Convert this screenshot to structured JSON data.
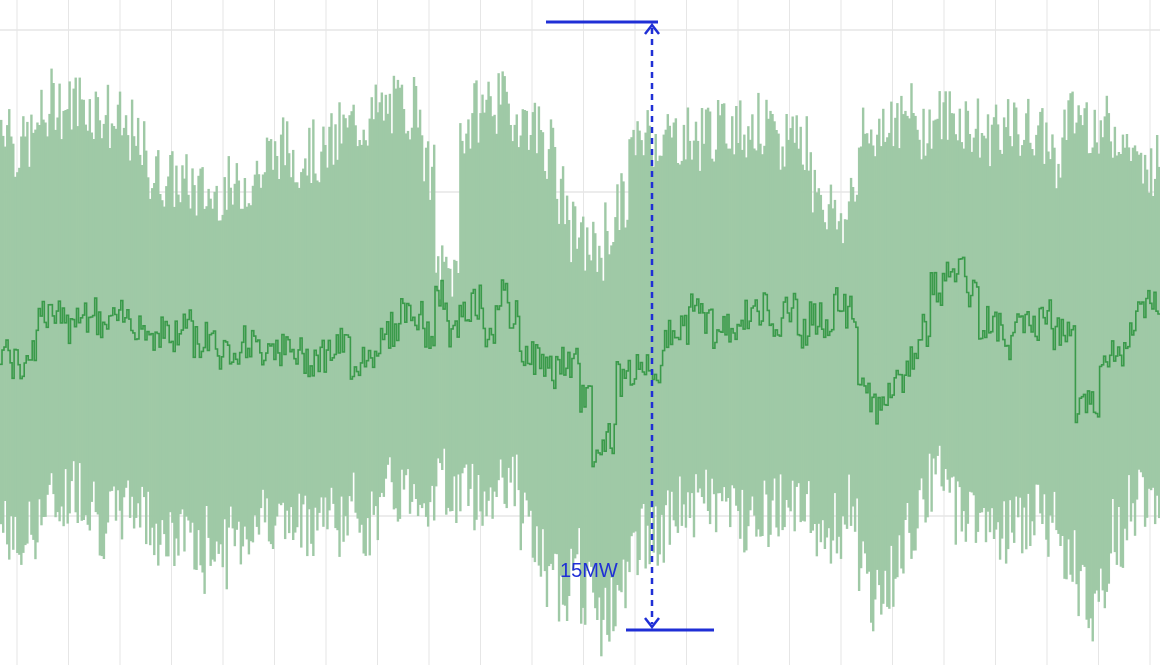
{
  "chart_data": {
    "type": "area",
    "title": "",
    "xlabel": "",
    "ylabel": "",
    "grid": true,
    "legend": "none",
    "colors": {
      "band_fill": "#9fc9a6",
      "line": "#3a9a4a",
      "grid": "#d8d8d8",
      "annotation": "#1f2fd6"
    },
    "series": [
      {
        "role": "mean",
        "values": [
          7.6,
          7.2,
          7.6,
          8.5,
          8.4,
          8.2,
          8.6,
          8.5,
          8.2,
          8.3,
          8.4,
          8.3,
          8.0,
          8.1,
          7.9,
          8.3,
          7.8,
          8.0,
          7.5,
          7.7,
          7.8,
          7.6,
          7.8,
          7.6,
          7.5,
          7.4,
          7.5,
          7.6,
          7.7,
          7.3,
          7.5,
          7.8,
          8.1,
          8.6,
          8.4,
          8.0,
          8.9,
          8.0,
          8.4,
          8.8,
          8.1,
          8.9,
          8.4,
          7.6,
          7.4,
          7.1,
          7.3,
          7.2,
          6.5,
          5.1,
          5.5,
          6.9,
          7.1,
          7.3,
          7.2,
          7.9,
          8.2,
          8.6,
          8.4,
          8.0,
          8.2,
          8.4,
          8.5,
          8.6,
          8.4,
          8.7,
          8.1,
          8.4,
          8.2,
          8.7,
          8.5,
          6.9,
          6.1,
          6.4,
          6.9,
          7.4,
          8.1,
          9.1,
          9.4,
          9.6,
          8.9,
          8.3,
          8.2,
          7.8,
          8.1,
          8.3,
          8.4,
          8.0,
          8.0,
          6.1,
          6.3,
          7.3,
          7.5,
          8.0,
          8.5,
          8.8
        ],
        "upper": [
          13.3,
          12.6,
          12.8,
          13.3,
          13.8,
          13.6,
          13.8,
          13.6,
          13.5,
          13.2,
          13.0,
          12.6,
          12.0,
          11.9,
          11.8,
          11.7,
          11.5,
          11.4,
          11.6,
          11.5,
          11.8,
          12.0,
          12.4,
          12.6,
          12.4,
          12.5,
          12.4,
          12.7,
          13.0,
          13.2,
          13.3,
          13.5,
          13.6,
          13.6,
          13.7,
          12.0,
          9.5,
          9.5,
          13.1,
          13.5,
          13.8,
          13.7,
          13.4,
          13.3,
          13.1,
          12.6,
          11.4,
          10.5,
          10.2,
          10.1,
          10.6,
          11.2,
          12.6,
          13.0,
          12.9,
          12.9,
          12.9,
          12.8,
          13.1,
          13.0,
          13.2,
          13.1,
          13.2,
          13.0,
          12.5,
          13.1,
          12.8,
          11.8,
          11.2,
          10.8,
          11.4,
          12.8,
          13.0,
          13.4,
          13.2,
          13.4,
          13.1,
          13.3,
          13.4,
          13.3,
          13.1,
          12.9,
          13.2,
          13.0,
          13.0,
          13.1,
          12.8,
          12.4,
          13.3,
          13.4,
          13.2,
          13.1,
          13.0,
          12.6,
          12.0,
          12.2
        ],
        "lower": [
          3.2,
          2.7,
          3.1,
          3.6,
          3.8,
          4.0,
          4.2,
          3.9,
          3.3,
          3.4,
          3.7,
          3.8,
          3.4,
          3.0,
          2.8,
          3.3,
          2.4,
          2.9,
          2.6,
          3.0,
          3.2,
          3.5,
          3.6,
          3.3,
          3.2,
          3.4,
          3.6,
          3.5,
          3.4,
          3.7,
          3.3,
          3.7,
          4.1,
          4.1,
          4.2,
          4.0,
          4.4,
          4.0,
          4.2,
          4.0,
          3.9,
          4.5,
          4.3,
          3.3,
          2.5,
          1.7,
          1.8,
          2.4,
          1.7,
          0.8,
          1.2,
          1.7,
          2.6,
          3.1,
          2.9,
          3.3,
          3.8,
          3.7,
          3.9,
          3.8,
          3.6,
          3.5,
          3.8,
          3.6,
          3.8,
          4.0,
          3.5,
          3.3,
          3.0,
          3.2,
          3.8,
          2.1,
          1.3,
          1.9,
          2.8,
          3.3,
          4.2,
          4.4,
          4.0,
          3.7,
          3.6,
          3.4,
          3.2,
          3.2,
          3.3,
          3.5,
          3.3,
          3.5,
          2.7,
          1.5,
          1.3,
          2.0,
          3.1,
          3.7,
          4.1,
          4.2
        ]
      }
    ],
    "annotations": [
      {
        "type": "range",
        "label": "15MW",
        "from": 0.7,
        "to": 15.7
      }
    ]
  }
}
